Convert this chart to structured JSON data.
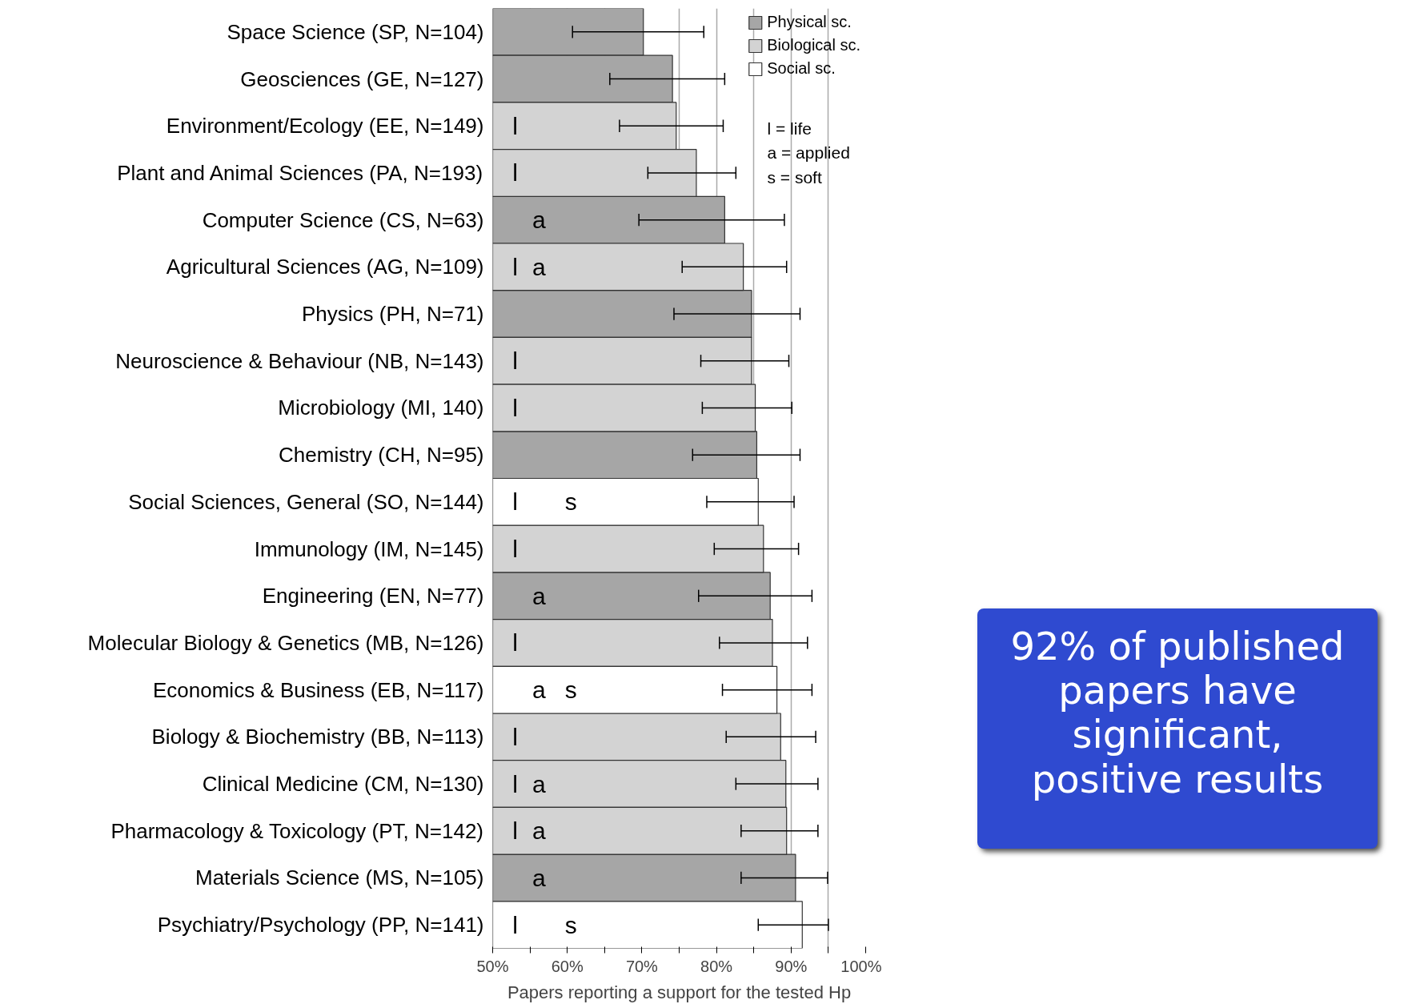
{
  "chart_data": {
    "type": "bar",
    "orientation": "horizontal",
    "xlabel": "Papers reporting a support for the tested Hp",
    "categories": [
      "Space Science (SP, N=104)",
      "Geosciences (GE, N=127)",
      "Environment/Ecology (EE, N=149)",
      "Plant and Animal Sciences (PA, N=193)",
      "Computer Science (CS, N=63)",
      "Agricultural Sciences (AG, N=109)",
      "Physics (PH, N=71)",
      "Neuroscience & Behaviour (NB, N=143)",
      "Microbiology (MI, 140)",
      "Chemistry (CH, N=95)",
      "Social Sciences, General (SO, N=144)",
      "Immunology (IM, N=145)",
      "Engineering (EN, N=77)",
      "Molecular Biology & Genetics (MB, N=126)",
      "Economics & Business (EB, N=117)",
      "Biology & Biochemistry (BB, N=113)",
      "Clinical Medicine (CM, N=130)",
      "Pharmacology & Toxicology (PT, N=142)",
      "Materials Science (MS, N=105)",
      "Psychiatry/Psychology (PP, N=141)"
    ],
    "series": [
      {
        "name": "Physical sc.",
        "color": "#a6a6a6",
        "values": [
          70.2,
          74.1,
          null,
          null,
          81.1,
          null,
          84.7,
          null,
          null,
          85.4,
          null,
          null,
          87.2,
          null,
          null,
          null,
          null,
          null,
          90.6,
          null
        ],
        "errors": [
          [
            60.7,
            78.3
          ],
          [
            65.7,
            81.1
          ],
          null,
          null,
          [
            69.6,
            89.1
          ],
          null,
          [
            74.3,
            91.2
          ],
          null,
          null,
          [
            76.8,
            91.2
          ],
          null,
          null,
          [
            77.6,
            92.8
          ],
          null,
          null,
          null,
          null,
          null,
          [
            83.3,
            94.9
          ],
          null
        ]
      },
      {
        "name": "Biological sc.",
        "color": "#d3d3d3",
        "values": [
          null,
          null,
          74.6,
          77.3,
          null,
          83.6,
          null,
          84.7,
          85.2,
          null,
          null,
          86.3,
          null,
          87.5,
          null,
          88.6,
          89.3,
          89.4,
          null,
          null
        ],
        "errors": [
          null,
          null,
          [
            67.0,
            80.9
          ],
          [
            70.8,
            82.6
          ],
          null,
          [
            75.4,
            89.4
          ],
          null,
          [
            77.9,
            89.7
          ],
          [
            78.1,
            90.1
          ],
          null,
          null,
          [
            79.7,
            91.0
          ],
          null,
          [
            80.4,
            92.2
          ],
          null,
          [
            81.3,
            93.3
          ],
          [
            82.6,
            93.6
          ],
          [
            83.3,
            93.6
          ],
          null,
          null
        ]
      },
      {
        "name": "Social sc.",
        "color": "#ffffff",
        "values": [
          null,
          null,
          null,
          null,
          null,
          null,
          null,
          null,
          null,
          null,
          85.6,
          null,
          null,
          null,
          88.1,
          null,
          null,
          null,
          null,
          91.5
        ],
        "errors": [
          null,
          null,
          null,
          null,
          null,
          null,
          null,
          null,
          null,
          null,
          [
            78.7,
            90.4
          ],
          null,
          null,
          null,
          [
            80.8,
            92.8
          ],
          null,
          null,
          null,
          null,
          [
            85.6,
            95.0
          ]
        ]
      }
    ],
    "xlim": [
      50,
      100
    ],
    "xticks": [
      {
        "value": 50,
        "label": "50%"
      },
      {
        "value": 55,
        "label": null
      },
      {
        "value": 60,
        "label": "60%"
      },
      {
        "value": 65,
        "label": null
      },
      {
        "value": 70,
        "label": "70%"
      },
      {
        "value": 75,
        "label": null
      },
      {
        "value": 80,
        "label": "80%"
      },
      {
        "value": 85,
        "label": null
      },
      {
        "value": 90,
        "label": "90%"
      },
      {
        "value": 95,
        "label": null
      },
      {
        "value": 100,
        "label": "100%"
      }
    ],
    "grid": "x",
    "legend": "top right",
    "annotations": [
      "l  = life",
      "a = applied",
      "s = soft",
      "92% of published papers have significant, positive results",
      {
        "text": "l",
        "x": 53,
        "y": "Environment/Ecology (EE, N=149)"
      },
      {
        "text": "l",
        "x": 53,
        "y": "Plant and Animal Sciences (PA, N=193)"
      },
      {
        "text": "a",
        "x": 56.2,
        "y": "Computer Science (CS, N=63)"
      },
      {
        "text": "l",
        "x": 53,
        "y": "Agricultural Sciences (AG, N=109)"
      },
      {
        "text": "a",
        "x": 56.2,
        "y": "Agricultural Sciences (AG, N=109)"
      },
      {
        "text": "l",
        "x": 53,
        "y": "Neuroscience & Behaviour (NB, N=143)"
      },
      {
        "text": "l",
        "x": 53,
        "y": "Microbiology (MI, 140)"
      },
      {
        "text": "l",
        "x": 53,
        "y": "Social Sciences, General (SO, N=144)"
      },
      {
        "text": "s",
        "x": 60.5,
        "y": "Social Sciences, General (SO, N=144)"
      },
      {
        "text": "l",
        "x": 53,
        "y": "Immunology (IM, N=145)"
      },
      {
        "text": "a",
        "x": 56.2,
        "y": "Engineering (EN, N=77)"
      },
      {
        "text": "l",
        "x": 53,
        "y": "Molecular Biology & Genetics (MB, N=126)"
      },
      {
        "text": "a",
        "x": 56.2,
        "y": "Economics & Business (EB, N=117)"
      },
      {
        "text": "s",
        "x": 60.5,
        "y": "Economics & Business (EB, N=117)"
      },
      {
        "text": "l",
        "x": 53,
        "y": "Biology & Biochemistry (BB, N=113)"
      },
      {
        "text": "l",
        "x": 53,
        "y": "Clinical Medicine (CM, N=130)"
      },
      {
        "text": "a",
        "x": 56.2,
        "y": "Clinical Medicine (CM, N=130)"
      },
      {
        "text": "l",
        "x": 53,
        "y": "Pharmacology & Toxicology (PT, N=142)"
      },
      {
        "text": "a",
        "x": 56.2,
        "y": "Pharmacology & Toxicology (PT, N=142)"
      },
      {
        "text": "a",
        "x": 56.2,
        "y": "Materials Science (MS, N=105)"
      },
      {
        "text": "l",
        "x": 53,
        "y": "Psychiatry/Psychology (PP, N=141)"
      },
      {
        "text": "s",
        "x": 60.5,
        "y": "Psychiatry/Psychology (PP, N=141)"
      }
    ]
  }
}
